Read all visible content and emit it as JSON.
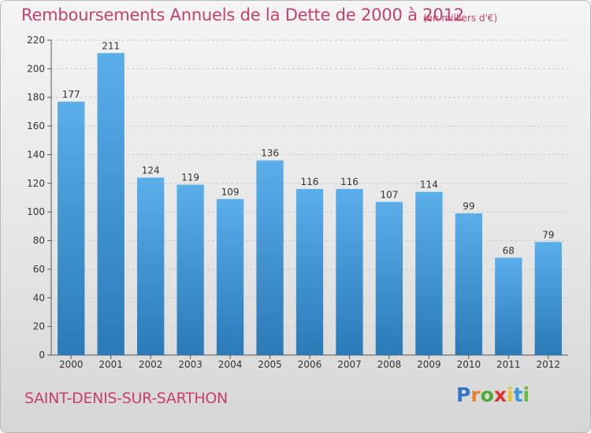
{
  "page": {
    "title": "Remboursements Annuels de la Dette de 2000 à 2012",
    "unit": "(en milliers d'€)",
    "commune": "SAINT-DENIS-SUR-SARTHON",
    "logo": {
      "letters": [
        "P",
        "r",
        "o",
        "x",
        "i",
        "t",
        "i"
      ],
      "colors": [
        "#2f76c8",
        "#e8852a",
        "#4fa83a",
        "#d8342d",
        "#e8c22a",
        "#3a9ad8",
        "#6bb83a"
      ]
    }
  },
  "chart_data": {
    "type": "bar",
    "categories": [
      "2000",
      "2001",
      "2002",
      "2003",
      "2004",
      "2005",
      "2006",
      "2007",
      "2008",
      "2009",
      "2010",
      "2011",
      "2012"
    ],
    "values": [
      177,
      211,
      124,
      119,
      109,
      136,
      116,
      116,
      107,
      114,
      99,
      68,
      79
    ],
    "ylim": [
      0,
      220
    ],
    "yticks": [
      0,
      20,
      40,
      60,
      80,
      100,
      120,
      140,
      160,
      180,
      200,
      220
    ],
    "grid": true,
    "bar_color_top": "#5aaeea",
    "bar_color_bottom": "#2a7ab8"
  }
}
